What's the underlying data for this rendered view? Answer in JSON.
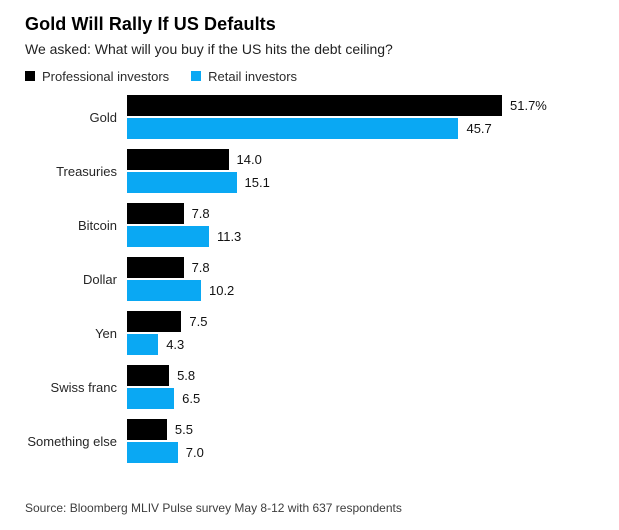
{
  "header": {
    "title": "Gold Will Rally If US Defaults",
    "subtitle": "We asked: What will you buy if the US hits the debt ceiling?"
  },
  "legend": {
    "items": [
      {
        "label": "Professional investors",
        "color": "#000000"
      },
      {
        "label": "Retail investors",
        "color": "#0aa8f3"
      }
    ]
  },
  "source": "Source: Bloomberg MLIV Pulse survey May 8-12 with 637 respondents",
  "colors": {
    "professional": "#000000",
    "retail": "#0aa8f3",
    "background": "#ffffff"
  },
  "chart_data": {
    "type": "bar",
    "orientation": "horizontal",
    "title": "Gold Will Rally If US Defaults",
    "subtitle": "We asked: What will you buy if the US hits the debt ceiling?",
    "categories": [
      "Gold",
      "Treasuries",
      "Bitcoin",
      "Dollar",
      "Yen",
      "Swiss franc",
      "Something else"
    ],
    "series": [
      {
        "name": "Professional investors",
        "color": "#000000",
        "values": [
          51.7,
          14.0,
          7.8,
          7.8,
          7.5,
          5.8,
          5.5
        ],
        "labels": [
          "51.7%",
          "14.0",
          "7.8",
          "7.8",
          "7.5",
          "5.8",
          "5.5"
        ]
      },
      {
        "name": "Retail investors",
        "color": "#0aa8f3",
        "values": [
          45.7,
          15.1,
          11.3,
          10.2,
          4.3,
          6.5,
          7.0
        ],
        "labels": [
          "45.7",
          "15.1",
          "11.3",
          "10.2",
          "4.3",
          "6.5",
          "7.0"
        ]
      }
    ],
    "value_unit": "%",
    "xlim": [
      0,
      55
    ],
    "grid": false,
    "legend_position": "top",
    "value_labels_shown": true
  }
}
